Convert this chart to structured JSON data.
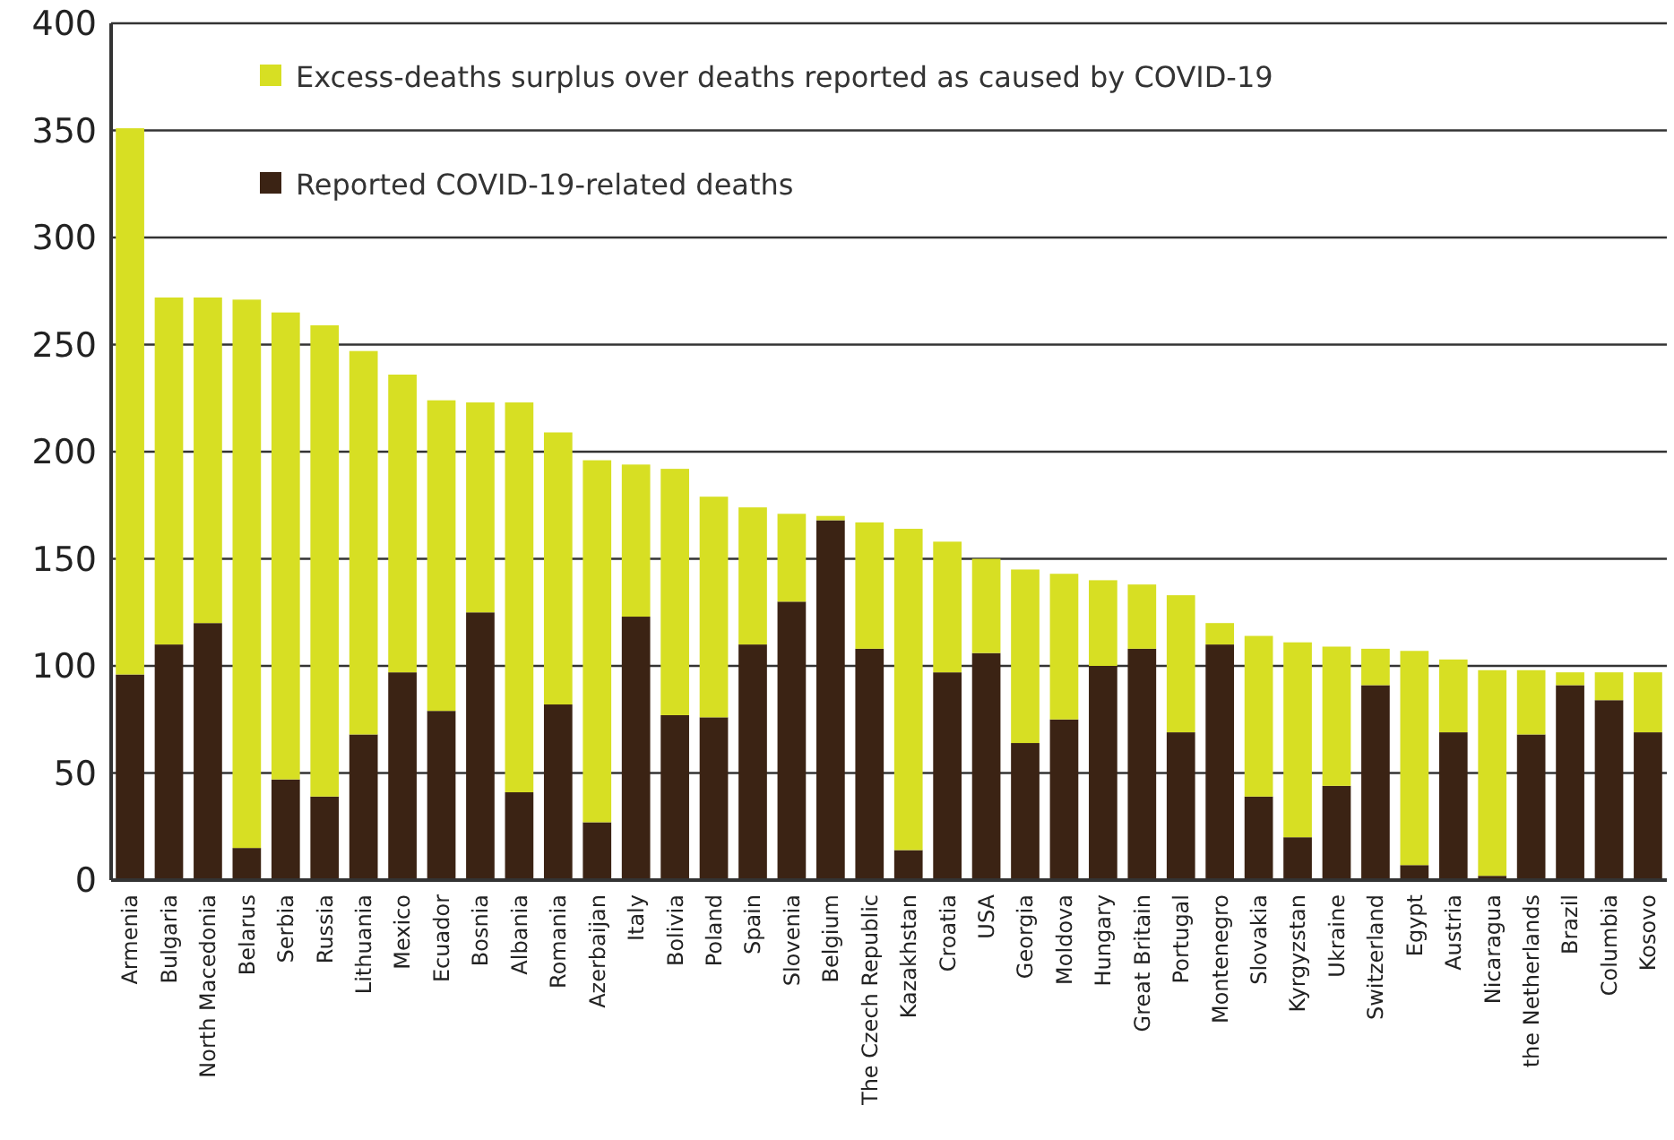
{
  "chart_data": {
    "type": "bar",
    "stacked": true,
    "categories": [
      "Armenia",
      "Bulgaria",
      "North Macedonia",
      "Belarus",
      "Serbia",
      "Russia",
      "Lithuania",
      "Mexico",
      "Ecuador",
      "Bosnia",
      "Albania",
      "Romania",
      "Azerbaijan",
      "Italy",
      "Bolivia",
      "Poland",
      "Spain",
      "Slovenia",
      "Belgium",
      "The Czech Republic",
      "Kazakhstan",
      "Croatia",
      "USA",
      "Georgia",
      "Moldova",
      "Hungary",
      "Great Britain",
      "Portugal",
      "Montenegro",
      "Slovakia",
      "Kyrgyzstan",
      "Ukraine",
      "Switzerland",
      "Egypt",
      "Austria",
      "Nicaragua",
      "the Netherlands",
      "Brazil",
      "Columbia",
      "Kosovo"
    ],
    "series": [
      {
        "name": "Reported COVID-19-related deaths",
        "color": "#3b2314",
        "values": [
          96,
          110,
          120,
          15,
          47,
          39,
          68,
          97,
          79,
          125,
          41,
          82,
          27,
          123,
          77,
          76,
          110,
          130,
          168,
          108,
          14,
          97,
          106,
          64,
          75,
          100,
          108,
          69,
          110,
          39,
          20,
          44,
          91,
          7,
          69,
          2,
          68,
          91,
          84,
          69
        ]
      },
      {
        "name": "Excess-deaths surplus over deaths reported as caused by COVID-19",
        "color": "#d7df23",
        "values": [
          255,
          162,
          152,
          256,
          218,
          220,
          179,
          139,
          145,
          98,
          182,
          127,
          169,
          71,
          115,
          103,
          64,
          41,
          2,
          59,
          150,
          61,
          44,
          81,
          68,
          40,
          30,
          64,
          10,
          75,
          91,
          65,
          17,
          100,
          34,
          96,
          30,
          6,
          13,
          28
        ]
      }
    ],
    "ylim": [
      0,
      400
    ],
    "yticks": [
      0,
      50,
      100,
      150,
      200,
      250,
      300,
      350,
      400
    ],
    "grid": "y",
    "legend": "top"
  }
}
